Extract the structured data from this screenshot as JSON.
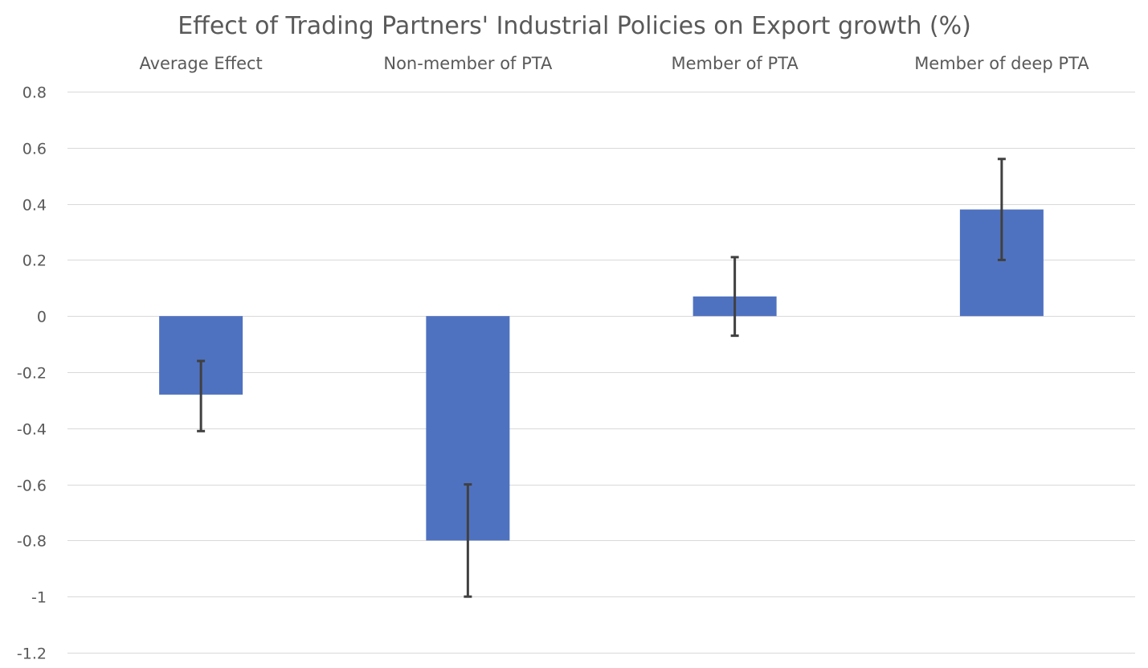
{
  "chart_data": {
    "type": "bar",
    "title": "Effect of Trading Partners' Industrial Policies on Export growth (%)",
    "xlabel": "",
    "ylabel": "",
    "categories": [
      "Average Effect",
      "Non-member of PTA",
      "Member of PTA",
      "Member of deep PTA"
    ],
    "category_label_position": "top",
    "values": [
      -0.28,
      -0.8,
      0.07,
      0.38
    ],
    "error_low": [
      -0.41,
      -1.0,
      -0.07,
      0.2
    ],
    "error_high": [
      -0.16,
      -0.6,
      0.21,
      0.56
    ],
    "ylim": [
      -1.2,
      0.8
    ],
    "yticks": [
      0.8,
      0.6,
      0.4,
      0.2,
      0,
      -0.2,
      -0.4,
      -0.6,
      -0.8,
      -1,
      -1.2
    ],
    "ytick_labels": [
      "0.8",
      "0.6",
      "0.4",
      "0.2",
      "0",
      "-0.2",
      "-0.4",
      "-0.6",
      "-0.8",
      "-1",
      "-1.2"
    ],
    "grid": true,
    "legend": "none",
    "colors": {
      "bar": "#4f72c0",
      "error_bar": "#404040",
      "grid": "#d9d9d9",
      "text": "#595959"
    }
  }
}
